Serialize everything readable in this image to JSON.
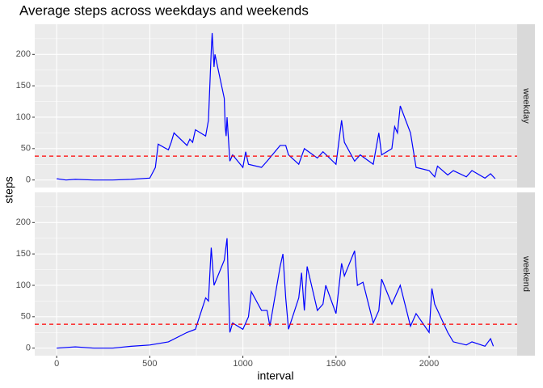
{
  "title": "Average steps across weekdays and weekends",
  "x_label": "interval",
  "y_label": "steps",
  "chart_data": [
    {
      "type": "line",
      "facet": "weekday",
      "xlim": [
        -117.75,
        2472.75
      ],
      "ylim": [
        -12,
        248
      ],
      "xticks": [
        0,
        500,
        1000,
        1500,
        2000
      ],
      "yticks": [
        0,
        50,
        100,
        150,
        200
      ],
      "grid": true,
      "x": [
        0,
        50,
        100,
        200,
        300,
        400,
        500,
        530,
        545,
        600,
        615,
        630,
        700,
        715,
        730,
        745,
        800,
        815,
        830,
        835,
        845,
        850,
        900,
        905,
        910,
        915,
        930,
        945,
        1000,
        1015,
        1030,
        1100,
        1130,
        1200,
        1230,
        1245,
        1300,
        1330,
        1400,
        1430,
        1500,
        1530,
        1545,
        1600,
        1630,
        1700,
        1730,
        1745,
        1800,
        1815,
        1830,
        1845,
        1900,
        1930,
        2000,
        2030,
        2045,
        2100,
        2130,
        2200,
        2230,
        2300,
        2330,
        2355
      ],
      "series": [
        {
          "color": "#0000ff",
          "values": [
            2,
            0,
            1,
            0,
            0,
            1,
            3,
            20,
            57,
            48,
            60,
            75,
            55,
            65,
            60,
            80,
            70,
            95,
            205,
            234,
            180,
            200,
            130,
            85,
            70,
            100,
            30,
            40,
            20,
            45,
            25,
            20,
            30,
            55,
            55,
            40,
            25,
            50,
            35,
            45,
            25,
            95,
            60,
            30,
            40,
            25,
            75,
            40,
            50,
            85,
            75,
            118,
            75,
            20,
            15,
            5,
            22,
            8,
            15,
            5,
            15,
            3,
            10,
            2
          ]
        }
      ],
      "reference_line": {
        "value": 38,
        "color": "#ff0000"
      }
    },
    {
      "type": "line",
      "facet": "weekend",
      "xlim": [
        -117.75,
        2472.75
      ],
      "ylim": [
        -12,
        248
      ],
      "xticks": [
        0,
        500,
        1000,
        1500,
        2000
      ],
      "yticks": [
        0,
        50,
        100,
        150,
        200
      ],
      "grid": true,
      "x": [
        0,
        100,
        200,
        300,
        400,
        500,
        600,
        700,
        745,
        800,
        815,
        830,
        845,
        900,
        915,
        930,
        945,
        1000,
        1030,
        1045,
        1100,
        1130,
        1145,
        1200,
        1215,
        1230,
        1245,
        1300,
        1315,
        1330,
        1345,
        1400,
        1430,
        1445,
        1500,
        1530,
        1545,
        1600,
        1615,
        1645,
        1700,
        1730,
        1745,
        1800,
        1845,
        1900,
        1930,
        2000,
        2015,
        2030,
        2100,
        2130,
        2200,
        2230,
        2300,
        2330,
        2345
      ],
      "series": [
        {
          "color": "#0000ff",
          "values": [
            0,
            2,
            0,
            0,
            3,
            5,
            10,
            25,
            30,
            80,
            75,
            160,
            100,
            140,
            175,
            25,
            40,
            30,
            50,
            90,
            60,
            60,
            35,
            130,
            150,
            80,
            30,
            80,
            120,
            60,
            130,
            60,
            70,
            100,
            55,
            135,
            115,
            155,
            100,
            105,
            40,
            60,
            110,
            70,
            100,
            35,
            55,
            25,
            95,
            70,
            25,
            10,
            5,
            10,
            3,
            15,
            3
          ]
        }
      ],
      "reference_line": {
        "value": 38,
        "color": "#ff0000"
      }
    }
  ]
}
